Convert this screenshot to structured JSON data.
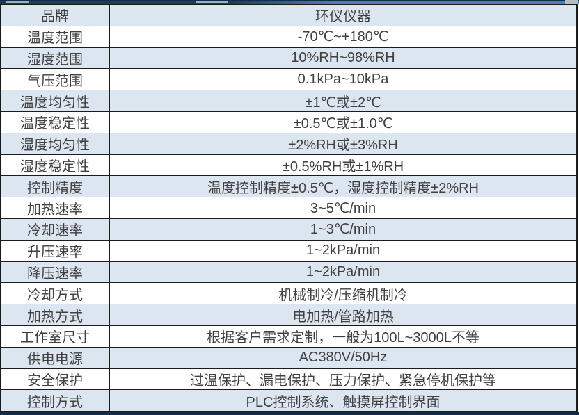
{
  "table": {
    "rows": [
      {
        "label": "品牌",
        "value": "环仪仪器"
      },
      {
        "label": "温度范围",
        "value": "-70℃~+180℃"
      },
      {
        "label": "湿度范围",
        "value": "10%RH~98%RH"
      },
      {
        "label": "气压范围",
        "value": "0.1kPa~10kPa"
      },
      {
        "label": "温度均匀性",
        "value": "±1℃或±2℃"
      },
      {
        "label": "温度稳定性",
        "value": "±0.5℃或±1.0℃"
      },
      {
        "label": "湿度均匀性",
        "value": "±2%RH或±3%RH"
      },
      {
        "label": "湿度稳定性",
        "value": "±0.5%RH或±1%RH"
      },
      {
        "label": "控制精度",
        "value": "温度控制精度±0.5℃，湿度控制精度±2%RH"
      },
      {
        "label": "加热速率",
        "value": "3~5℃/min"
      },
      {
        "label": "冷却速率",
        "value": "1~3℃/min"
      },
      {
        "label": "升压速率",
        "value": "1~2kPa/min"
      },
      {
        "label": "降压速率",
        "value": "1~2kPa/min"
      },
      {
        "label": "冷却方式",
        "value": "机械制冷/压缩机制冷"
      },
      {
        "label": "加热方式",
        "value": "电加热/管路加热"
      },
      {
        "label": "工作室尺寸",
        "value": "根据客户需求定制，一般为100L~3000L不等"
      },
      {
        "label": "供电电源",
        "value": "AC380V/50Hz"
      },
      {
        "label": "安全保护",
        "value": "过温保护、漏电保护、压力保护、紧急停机保护等"
      },
      {
        "label": "控制方式",
        "value": "PLC控制系统、触摸屏控制界面"
      }
    ]
  },
  "colors": {
    "row_alt_background": "#dce6f1",
    "row_base_background": "#ffffff",
    "border": "#1b1b1b",
    "text": "#404040",
    "top_strip_left": "#1e3a66",
    "top_strip_right": "#4a7ebd",
    "bottom_strip": "#152c49",
    "corner_cap": "#b7bcc2"
  }
}
